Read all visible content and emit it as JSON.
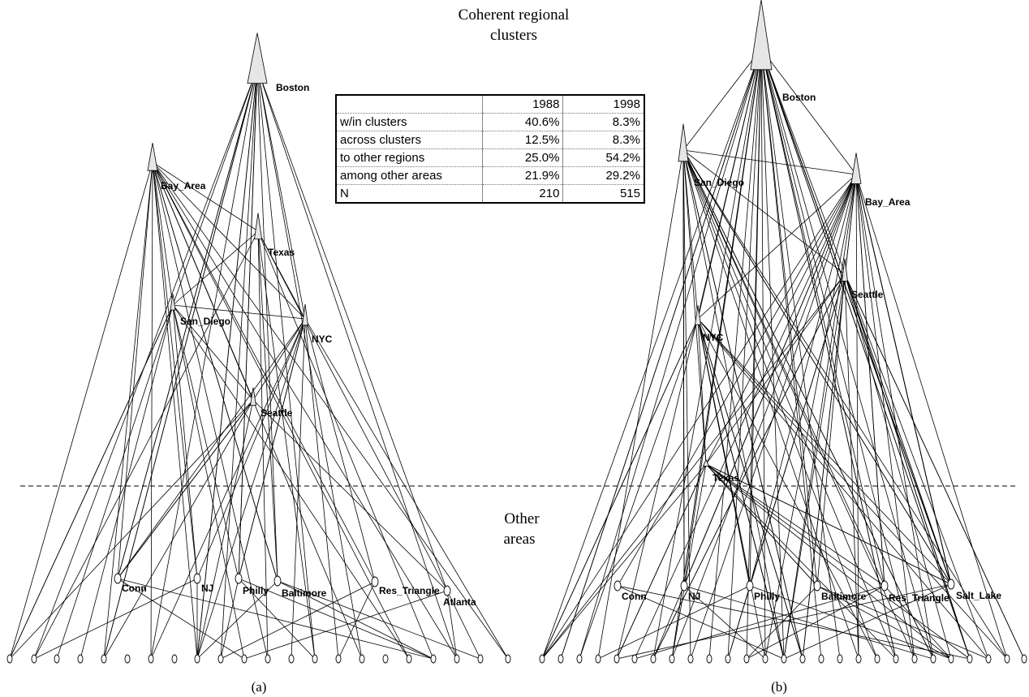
{
  "header": {
    "title_line1": "Coherent regional",
    "title_line2": "clusters"
  },
  "other_label": {
    "line1": "Other",
    "line2": "areas"
  },
  "panels": {
    "a": {
      "caption": "(a)",
      "clusters": [
        {
          "id": "boston",
          "label": "Boston"
        },
        {
          "id": "bay",
          "label": "Bay_Area"
        },
        {
          "id": "texas",
          "label": "Texas"
        },
        {
          "id": "sandiego",
          "label": "San_Diego"
        },
        {
          "id": "nyc",
          "label": "NYC"
        },
        {
          "id": "seattle",
          "label": "Seattle"
        }
      ],
      "other_areas": [
        {
          "id": "conn",
          "label": "Conn"
        },
        {
          "id": "nj",
          "label": "NJ"
        },
        {
          "id": "philly",
          "label": "Philly"
        },
        {
          "id": "baltimore",
          "label": "Baltimore"
        },
        {
          "id": "restri",
          "label": "Res_Triangle"
        },
        {
          "id": "atlanta",
          "label": "Atlanta"
        }
      ]
    },
    "b": {
      "caption": "(b)",
      "clusters": [
        {
          "id": "boston",
          "label": "Boston"
        },
        {
          "id": "sandiego",
          "label": "San_Diego"
        },
        {
          "id": "bay",
          "label": "Bay_Area"
        },
        {
          "id": "seattle",
          "label": "Seattle"
        },
        {
          "id": "nyc",
          "label": "NYC"
        },
        {
          "id": "texas",
          "label": "Texas"
        }
      ],
      "other_areas": [
        {
          "id": "conn",
          "label": "Conn"
        },
        {
          "id": "nj",
          "label": "NJ"
        },
        {
          "id": "philly",
          "label": "Philly"
        },
        {
          "id": "baltimore",
          "label": "Baltimore"
        },
        {
          "id": "restri",
          "label": "Res_Triangle"
        },
        {
          "id": "saltlake",
          "label": "Salt_Lake"
        }
      ]
    }
  },
  "stats_table": {
    "header": [
      "",
      "1988",
      "1998"
    ],
    "rows": [
      {
        "label": "w/in clusters",
        "v1988": "40.6%",
        "v1998": "8.3%"
      },
      {
        "label": "across clusters",
        "v1988": "12.5%",
        "v1998": "8.3%"
      },
      {
        "label": "to other regions",
        "v1988": "25.0%",
        "v1998": "54.2%"
      },
      {
        "label": "among other areas",
        "v1988": "21.9%",
        "v1998": "29.2%"
      },
      {
        "label": "N",
        "v1988": "210",
        "v1998": "515"
      }
    ]
  }
}
